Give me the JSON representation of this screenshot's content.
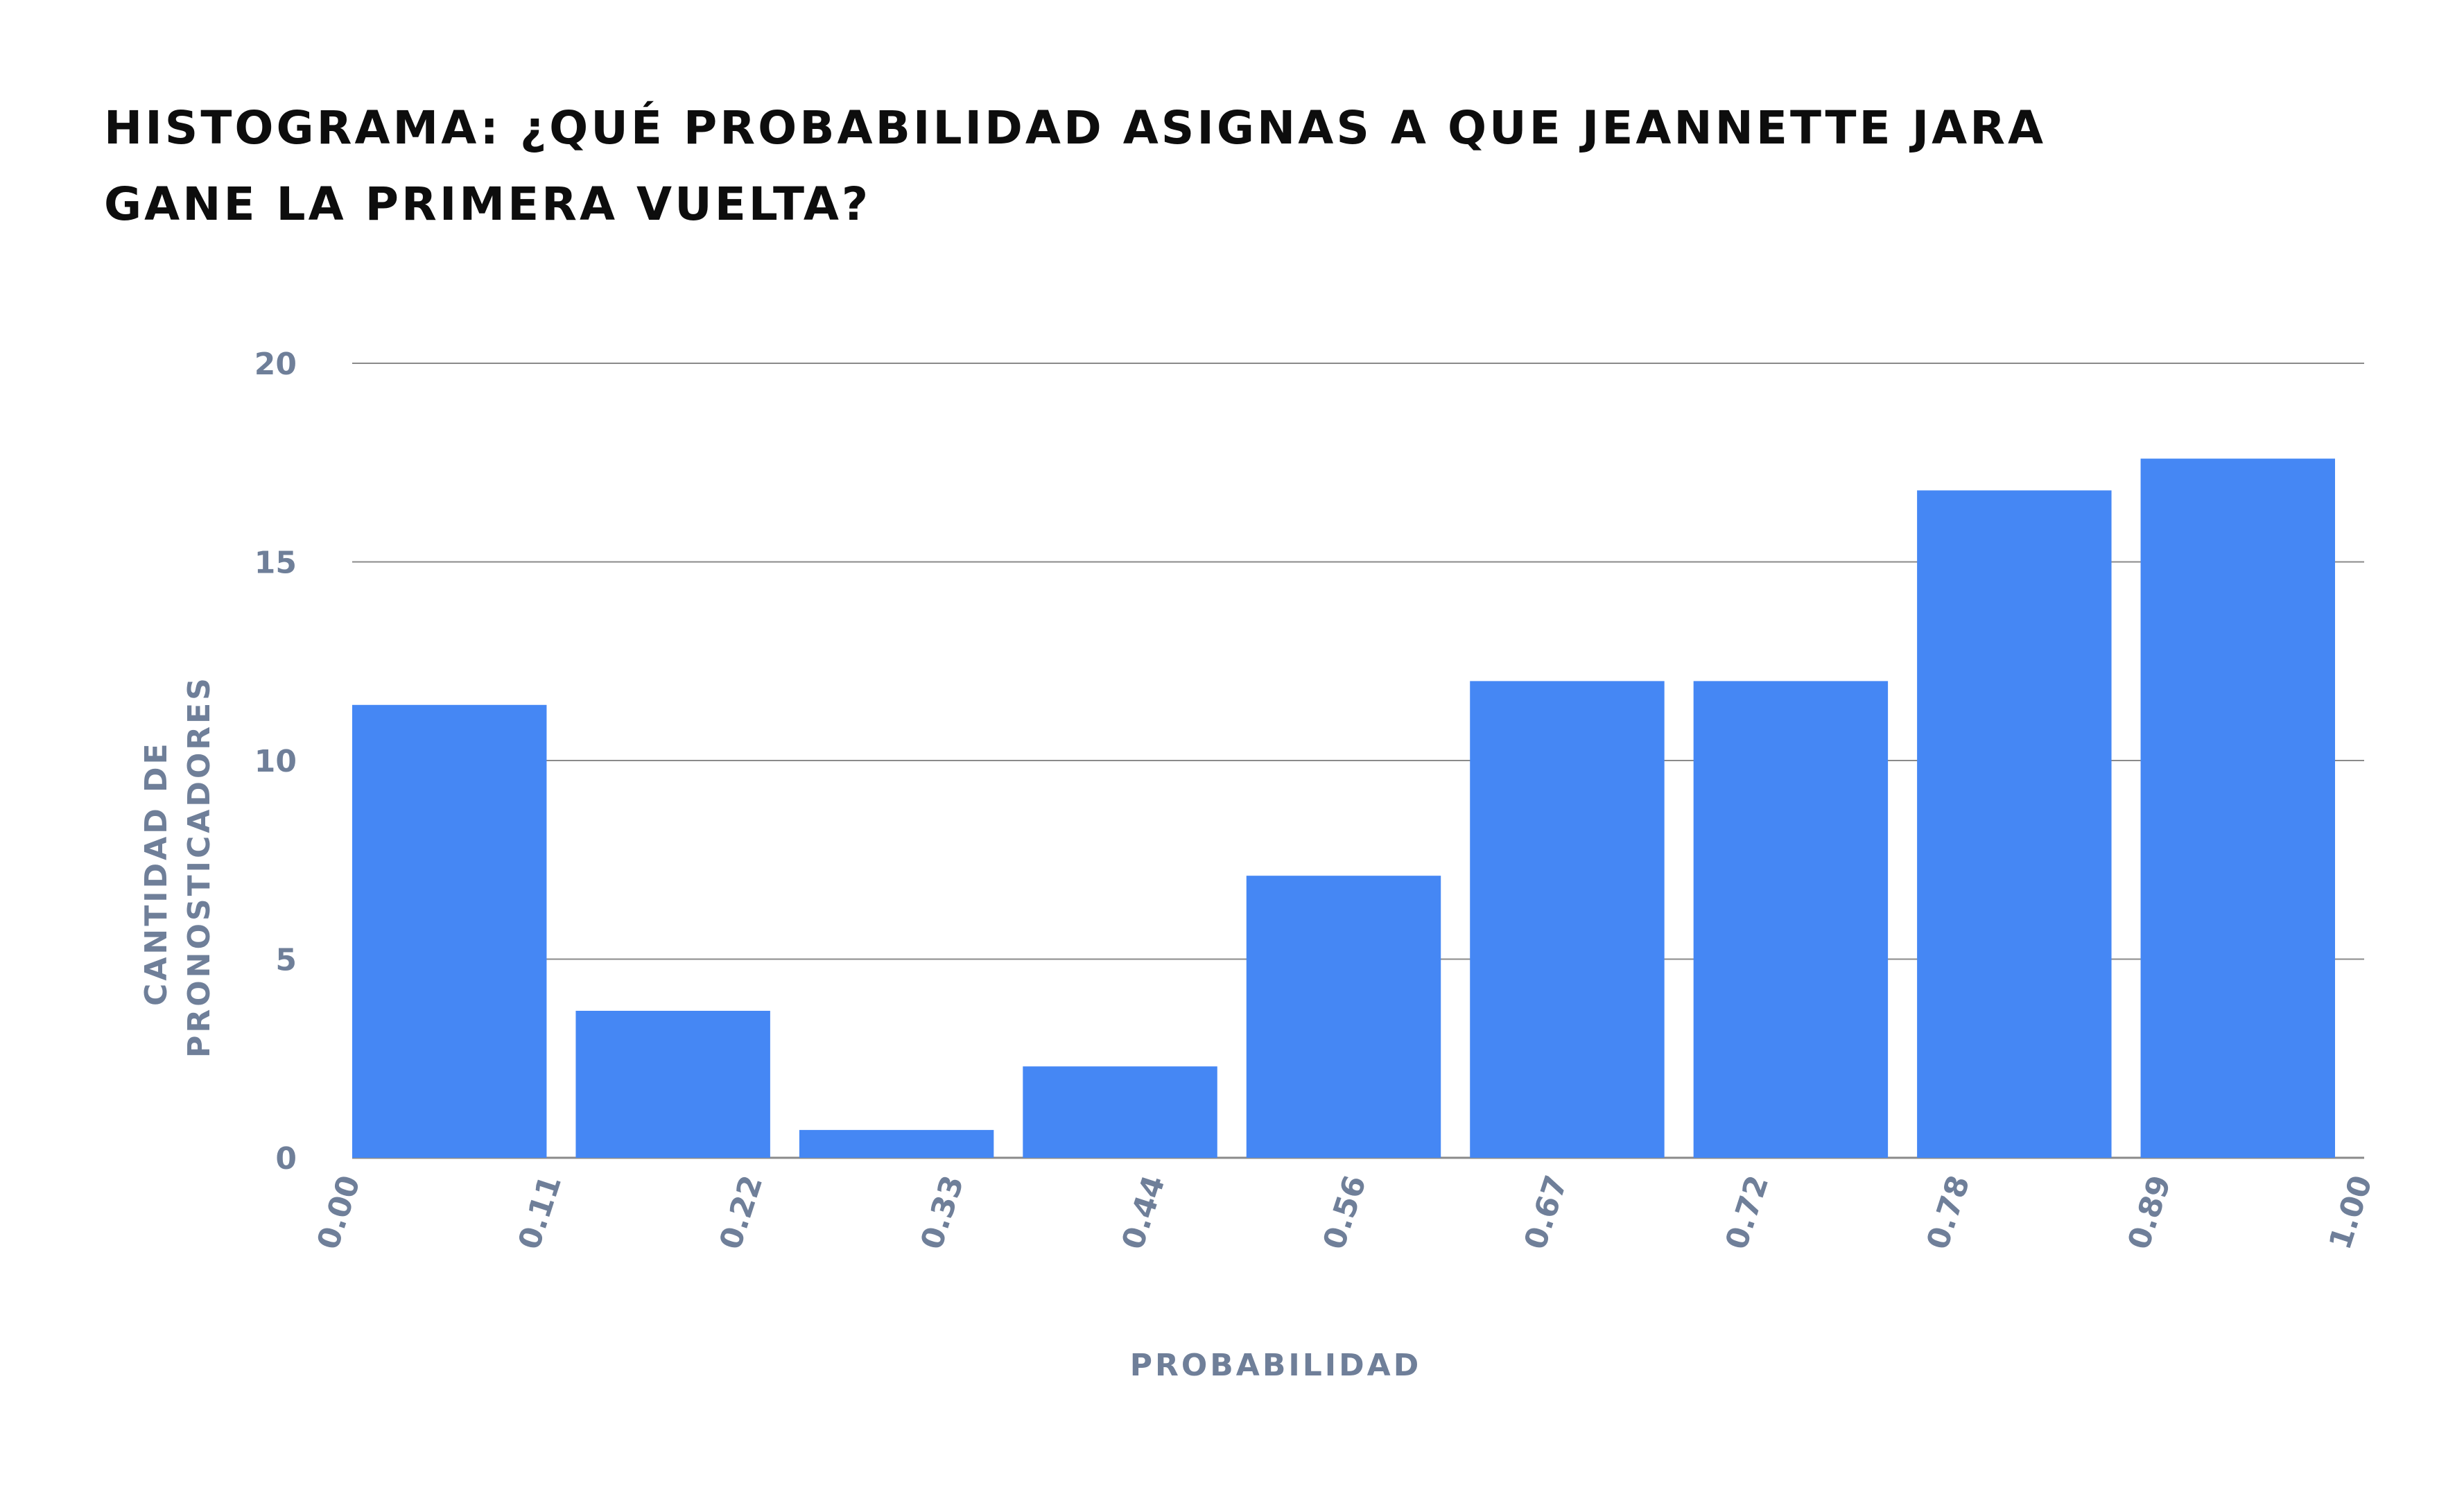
{
  "chart_data": {
    "type": "bar",
    "title": "HISTOGRAMA: ¿QUÉ PROBABILIDAD ASIGNAS A QUE JEANNETTE JARA GANE LA PRIMERA VUELTA?",
    "xlabel": "PROBABILIDAD",
    "ylabel": [
      "CANTIDAD DE",
      "PRONOSTICADORES"
    ],
    "x_ticks": [
      "0.00",
      "0.11",
      "0.22",
      "0.33",
      "0.44",
      "0.56",
      "0.67",
      "0.72",
      "0.78",
      "0.89",
      "1.00"
    ],
    "bins": [
      {
        "from": "0.00",
        "to": "0.11",
        "value": 11.4
      },
      {
        "from": "0.11",
        "to": "0.22",
        "value": 3.7
      },
      {
        "from": "0.22",
        "to": "0.33",
        "value": 0.7
      },
      {
        "from": "0.33",
        "to": "0.44",
        "value": 2.3
      },
      {
        "from": "0.44",
        "to": "0.56",
        "value": 7.1
      },
      {
        "from": "0.56",
        "to": "0.67",
        "value": 12.0
      },
      {
        "from": "0.67",
        "to": "0.72",
        "value": 12.0
      },
      {
        "from": "0.72",
        "to": "0.78",
        "value": 16.8
      },
      {
        "from": "0.78",
        "to": "0.89",
        "value": 17.6
      }
    ],
    "y_ticks": [
      0,
      5,
      10,
      15,
      20
    ],
    "ylim": [
      0,
      20
    ],
    "grid": true,
    "colors": {
      "bar": "#4587f4",
      "grid": "#8a8a8a",
      "tick_label": "#6f7f99",
      "title": "#0d0d0d"
    }
  }
}
